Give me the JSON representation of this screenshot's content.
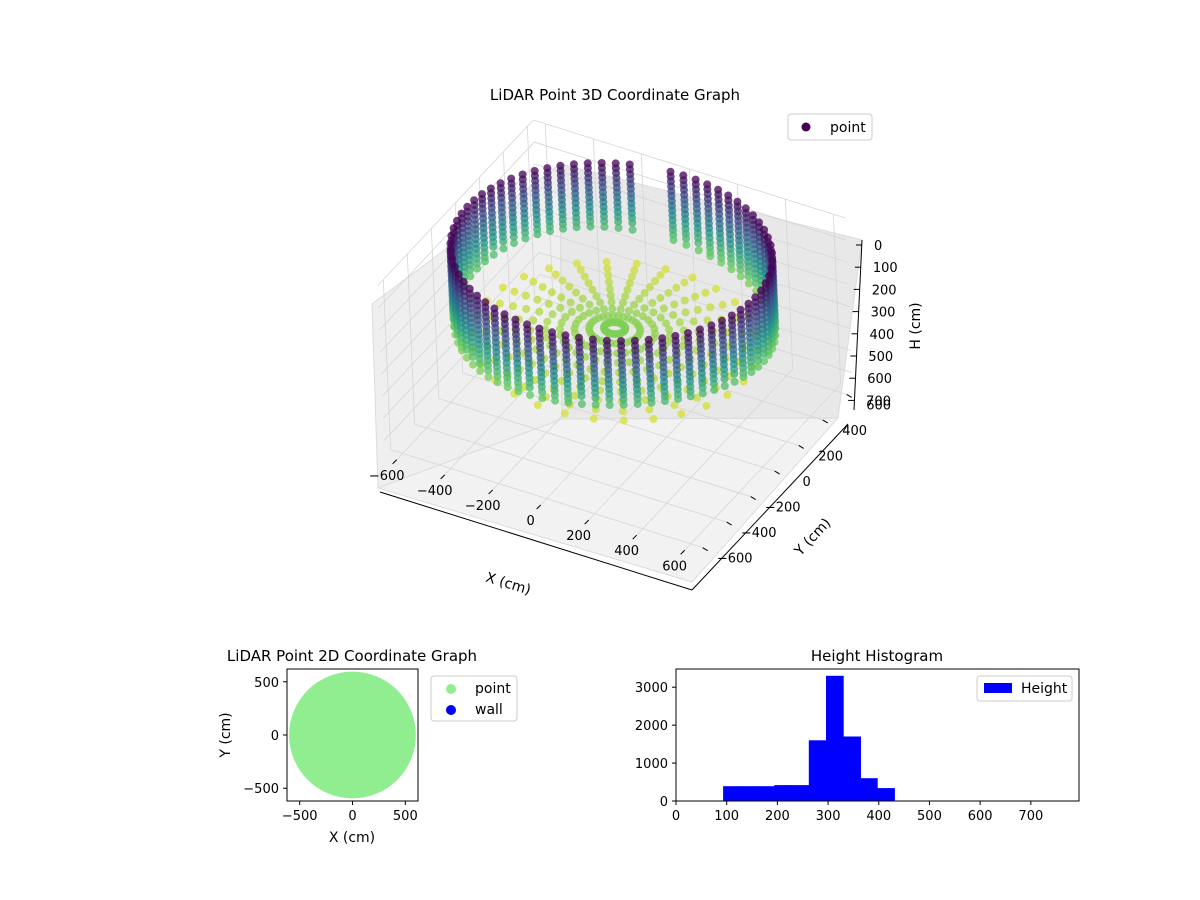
{
  "chart_data": [
    {
      "type": "scatter",
      "title": "LiDAR Point 3D Coordinate Graph",
      "xlabel": "X (cm)",
      "ylabel": "Y (cm)",
      "zlabel": "H (cm)",
      "xticks": [
        -600,
        -400,
        -200,
        0,
        200,
        400,
        600
      ],
      "yticks": [
        -600,
        -400,
        -200,
        0,
        200,
        400,
        600
      ],
      "zticks": [
        0,
        100,
        200,
        300,
        400,
        500,
        600,
        700
      ],
      "xlim": [
        -650,
        650
      ],
      "ylim": [
        -650,
        650
      ],
      "zlim": [
        0,
        770
      ],
      "z_inverted": true,
      "legend": [
        "point"
      ],
      "legend_position": "top-right",
      "colormap": "viridis",
      "grid": true,
      "shape": {
        "wall_radius": 600,
        "wall_height_range": [
          0,
          330
        ],
        "floor_height_range": [
          330,
          430
        ],
        "gap_angle_deg": [
          95,
          110
        ]
      }
    },
    {
      "type": "scatter",
      "title": "LiDAR Point 2D Coordinate Graph",
      "xlabel": "X (cm)",
      "ylabel": "Y (cm)",
      "xticks": [
        -500,
        0,
        500
      ],
      "yticks": [
        -500,
        0,
        500
      ],
      "xlim": [
        -620,
        620
      ],
      "ylim": [
        -620,
        620
      ],
      "series": [
        {
          "name": "point",
          "color": "#90ee90",
          "shape": "disk",
          "radius": 600
        },
        {
          "name": "wall",
          "color": "#0000ff"
        }
      ],
      "legend_position": "outside-right"
    },
    {
      "type": "bar",
      "title": "Height Histogram",
      "xticks": [
        0,
        100,
        200,
        300,
        400,
        500,
        600,
        700
      ],
      "yticks": [
        0,
        1000,
        2000,
        3000
      ],
      "xlim": [
        0,
        795
      ],
      "ylim": [
        0,
        3480
      ],
      "series": [
        {
          "name": "Height",
          "color": "#0000ff"
        }
      ],
      "bins": [
        {
          "x0": 93,
          "x1": 126,
          "value": 390
        },
        {
          "x0": 126,
          "x1": 160,
          "value": 390
        },
        {
          "x0": 160,
          "x1": 194,
          "value": 390
        },
        {
          "x0": 194,
          "x1": 228,
          "value": 420
        },
        {
          "x0": 228,
          "x1": 262,
          "value": 420
        },
        {
          "x0": 262,
          "x1": 296,
          "value": 1600
        },
        {
          "x0": 296,
          "x1": 330,
          "value": 3300
        },
        {
          "x0": 330,
          "x1": 364,
          "value": 1700
        },
        {
          "x0": 364,
          "x1": 397,
          "value": 600
        },
        {
          "x0": 397,
          "x1": 431,
          "value": 340
        }
      ],
      "legend_position": "top-right"
    }
  ]
}
